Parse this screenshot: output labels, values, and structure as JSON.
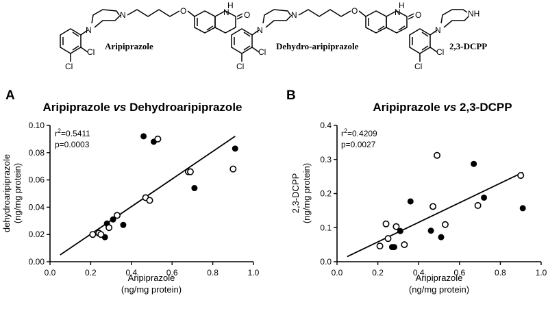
{
  "structures": [
    {
      "name": "Aripiprazole",
      "atoms": {
        "nh": "H",
        "n": "N",
        "o": "O",
        "cl1": "Cl",
        "cl2": "Cl",
        "pip_n1": "N",
        "pip_n2": "N"
      }
    },
    {
      "name": "Dehydro-aripiprazole",
      "atoms": {
        "nh": "H",
        "n": "N",
        "o": "O",
        "cl1": "Cl",
        "cl2": "Cl",
        "pip_n1": "N",
        "pip_n2": "N"
      }
    },
    {
      "name": "2,3-DCPP",
      "atoms": {
        "nh": "NH",
        "cl1": "Cl",
        "cl2": "Cl",
        "pip_n1": "N"
      }
    }
  ],
  "chart_data": [
    {
      "panel": "A",
      "type": "scatter",
      "title_main": "Aripiprazole",
      "title_vs": "vs",
      "title_rest": "Dehydroaripiprazole",
      "xlabel": "Aripiprazole",
      "xlabel_unit": "(ng/mg protein)",
      "ylabel": "dehydroaripiprazole",
      "ylabel_unit": "(ng/mg protein)",
      "xlim": [
        0,
        1.0
      ],
      "ylim": [
        0,
        0.1
      ],
      "xticks": [
        "0.0",
        "0.2",
        "0.4",
        "0.6",
        "0.8",
        "1.0"
      ],
      "yticks": [
        "0.00",
        "0.02",
        "0.04",
        "0.06",
        "0.08",
        "0.10"
      ],
      "stats": {
        "r2_label": "r",
        "r2_sup": "2",
        "r2_value": "=0.5411",
        "p": "p=0.0003"
      },
      "fit": {
        "x": [
          0.05,
          0.91
        ],
        "y": [
          0.005,
          0.092
        ]
      },
      "series": [
        {
          "marker": "filled",
          "x": [
            0.27,
            0.28,
            0.31,
            0.36,
            0.46,
            0.51,
            0.71,
            0.91
          ],
          "y": [
            0.018,
            0.028,
            0.031,
            0.027,
            0.092,
            0.088,
            0.054,
            0.083
          ]
        },
        {
          "marker": "open",
          "x": [
            0.21,
            0.24,
            0.25,
            0.29,
            0.33,
            0.47,
            0.49,
            0.53,
            0.68,
            0.69,
            0.9
          ],
          "y": [
            0.02,
            0.021,
            0.02,
            0.025,
            0.034,
            0.047,
            0.045,
            0.09,
            0.066,
            0.066,
            0.068
          ]
        }
      ]
    },
    {
      "panel": "B",
      "type": "scatter",
      "title_main": "Aripiprazole",
      "title_vs": "vs",
      "title_rest": "2,3-DCPP",
      "xlabel": "Aripiprazole",
      "xlabel_unit": "(ng/mg protein)",
      "ylabel": "2,3-DCPP",
      "ylabel_unit": "(ng/mg protein)",
      "xlim": [
        0,
        1.0
      ],
      "ylim": [
        0,
        0.4
      ],
      "xticks": [
        "0.0",
        "0.2",
        "0.4",
        "0.6",
        "0.8",
        "1.0"
      ],
      "yticks": [
        "0.0",
        "0.1",
        "0.2",
        "0.3",
        "0.4"
      ],
      "stats": {
        "r2_label": "r",
        "r2_sup": "2",
        "r2_value": "=0.4209",
        "p": "p=0.0027"
      },
      "fit": {
        "x": [
          0.05,
          0.91
        ],
        "y": [
          0.015,
          0.262
        ]
      },
      "series": [
        {
          "marker": "filled",
          "x": [
            0.27,
            0.28,
            0.31,
            0.36,
            0.46,
            0.51,
            0.67,
            0.72,
            0.91
          ],
          "y": [
            0.043,
            0.043,
            0.09,
            0.177,
            0.091,
            0.072,
            0.287,
            0.188,
            0.157
          ]
        },
        {
          "marker": "open",
          "x": [
            0.21,
            0.24,
            0.25,
            0.29,
            0.33,
            0.47,
            0.49,
            0.53,
            0.69,
            0.9
          ],
          "y": [
            0.046,
            0.111,
            0.068,
            0.103,
            0.05,
            0.162,
            0.312,
            0.109,
            0.165,
            0.253
          ]
        }
      ]
    }
  ]
}
